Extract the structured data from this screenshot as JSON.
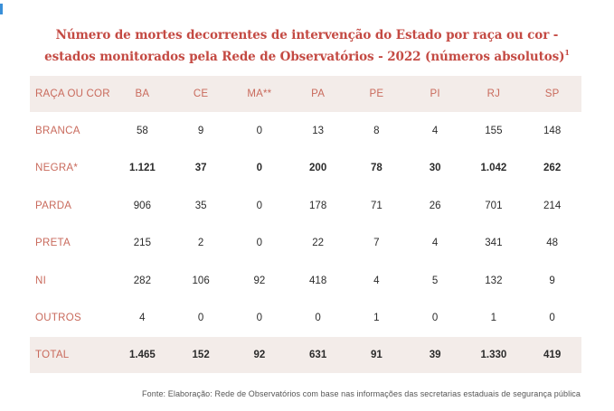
{
  "title": {
    "line1": "Número de mortes decorrentes de intervenção do Estado por raça ou cor -",
    "line2": "estados monitorados pela Rede de Observatórios - 2022 (números absolutos)",
    "footnote_marker": "1"
  },
  "table": {
    "headers": [
      "RAÇA OU COR",
      "BA",
      "CE",
      "MA**",
      "PA",
      "PE",
      "PI",
      "RJ",
      "SP"
    ],
    "rows": [
      {
        "label": "BRANCA",
        "values": [
          "58",
          "9",
          "0",
          "13",
          "8",
          "4",
          "155",
          "148"
        ]
      },
      {
        "label": "NEGRA*",
        "values": [
          "1.121",
          "37",
          "0",
          "200",
          "78",
          "30",
          "1.042",
          "262"
        ]
      },
      {
        "label": "PARDA",
        "values": [
          "906",
          "35",
          "0",
          "178",
          "71",
          "26",
          "701",
          "214"
        ]
      },
      {
        "label": "PRETA",
        "values": [
          "215",
          "2",
          "0",
          "22",
          "7",
          "4",
          "341",
          "48"
        ]
      },
      {
        "label": "NI",
        "values": [
          "282",
          "106",
          "92",
          "418",
          "4",
          "5",
          "132",
          "9"
        ]
      },
      {
        "label": "OUTROS",
        "values": [
          "4",
          "0",
          "0",
          "0",
          "1",
          "0",
          "1",
          "0"
        ]
      }
    ],
    "total": {
      "label": "TOTAL",
      "values": [
        "1.465",
        "152",
        "92",
        "631",
        "91",
        "39",
        "1.330",
        "419"
      ]
    }
  },
  "source": "Fonte: Elaboração: Rede de Observatórios com base nas informações das secretarias estaduais de segurança pública"
}
